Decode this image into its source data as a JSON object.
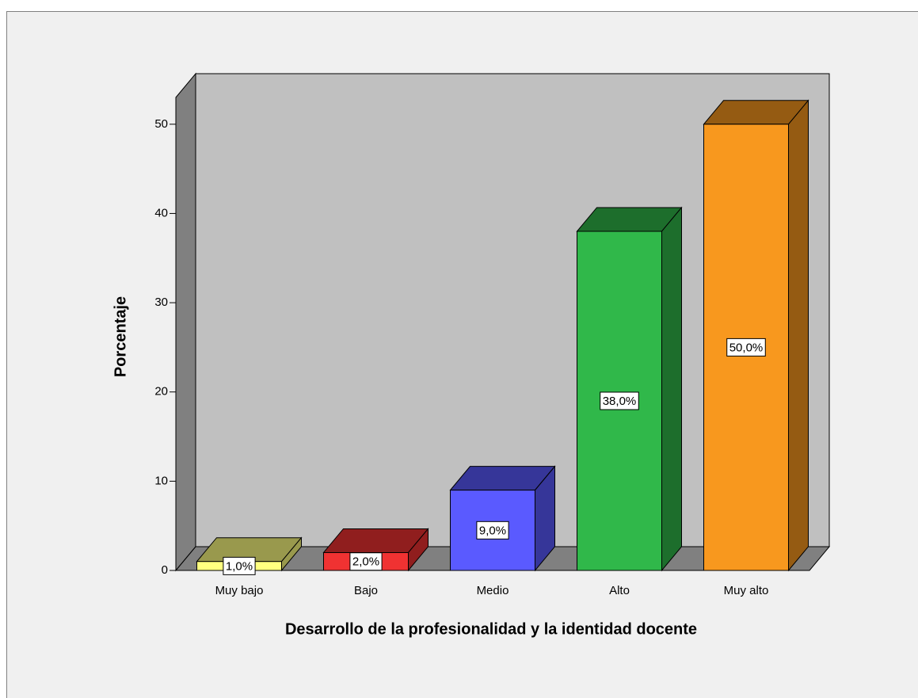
{
  "chart_data": {
    "type": "bar3d",
    "categories": [
      "Muy bajo",
      "Bajo",
      "Medio",
      "Alto",
      "Muy alto"
    ],
    "values": [
      1,
      2,
      9,
      38,
      50
    ],
    "value_labels": [
      "1,0%",
      "2,0%",
      "9,0%",
      "38,0%",
      "50,0%"
    ],
    "colors": [
      "#ffff80",
      "#f03232",
      "#5a5aff",
      "#30b84a",
      "#f8981e"
    ],
    "x_label": "Desarrollo de la profesionalidad y la identidad docente",
    "y_label": "Porcentaje",
    "ylim": [
      0,
      53
    ],
    "yticks": [
      0,
      10,
      20,
      30,
      40,
      50
    ]
  }
}
